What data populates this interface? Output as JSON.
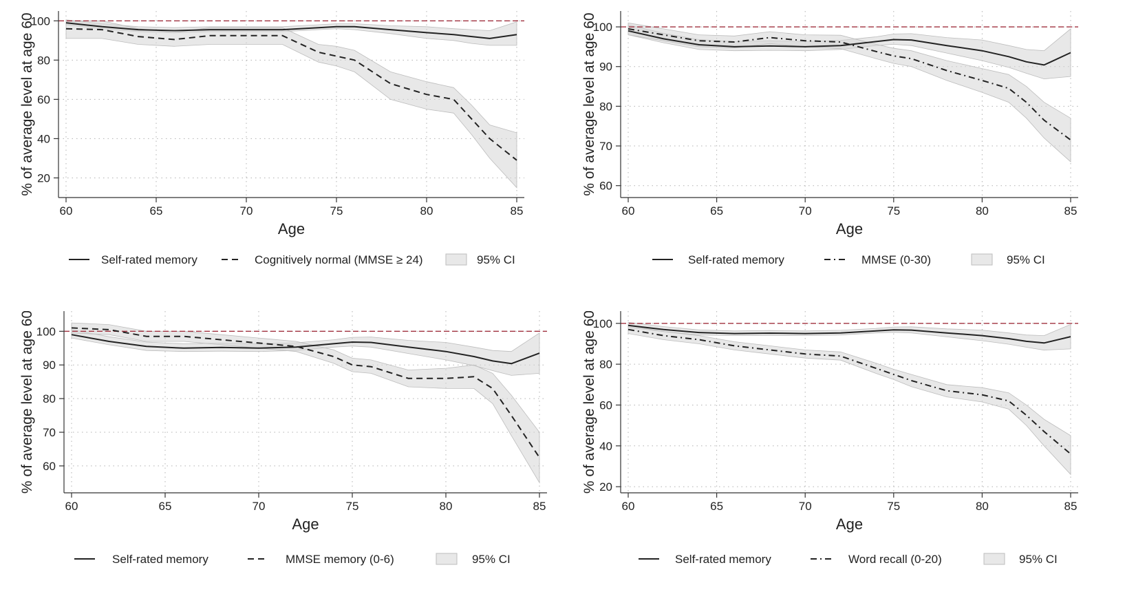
{
  "chart_data": [
    {
      "type": "line",
      "xlabel": "Age",
      "ylabel": "% of average level at age 60",
      "xlim": [
        60,
        85
      ],
      "xticks": [
        60,
        65,
        70,
        75,
        80,
        85
      ],
      "ylim": [
        10,
        105
      ],
      "yticks": [
        20,
        40,
        60,
        80,
        100
      ],
      "reference_line": 100,
      "grid": true,
      "legend_position": "bottom",
      "x": [
        60,
        62,
        64,
        66,
        68,
        70,
        72,
        74,
        75,
        76,
        78,
        80,
        81.5,
        82.5,
        83.5,
        85
      ],
      "series": [
        {
          "name": "Self-rated memory",
          "style": "solid",
          "values": [
            99,
            97,
            95.5,
            95,
            95.5,
            95.5,
            95.5,
            96.5,
            97,
            97,
            95.5,
            94,
            93,
            92,
            91,
            93
          ],
          "ci_lower": [
            98,
            96,
            94.5,
            94,
            94.5,
            94.5,
            94.5,
            95.5,
            96,
            95.5,
            93.5,
            91,
            90,
            88.5,
            87.5,
            87.5
          ],
          "ci_upper": [
            100.5,
            98.5,
            97,
            96.5,
            97,
            97,
            97,
            98,
            98.5,
            98.5,
            97.5,
            97,
            96,
            95.5,
            95,
            99.5
          ]
        },
        {
          "name": "Cognitively normal (MMSE ≥ 24)",
          "style": "dashed",
          "values": [
            96,
            95.5,
            92,
            90.5,
            92.5,
            92.5,
            92.5,
            84,
            82,
            80,
            68,
            62.5,
            60,
            50,
            40,
            29
          ],
          "ci_lower": [
            91,
            91,
            88,
            87,
            88,
            88,
            88,
            79,
            77,
            74,
            60,
            55,
            53,
            42,
            30,
            15
          ],
          "ci_upper": [
            100,
            100,
            96,
            94,
            96.5,
            96.5,
            96.5,
            88,
            87,
            85,
            74,
            69,
            66,
            57,
            47,
            43
          ]
        }
      ],
      "legend": [
        "Self-rated memory",
        "Cognitively normal (MMSE ≥ 24)",
        "95% CI"
      ]
    },
    {
      "type": "line",
      "xlabel": "Age",
      "ylabel": "% of average level at age 60",
      "xlim": [
        60,
        85
      ],
      "xticks": [
        60,
        65,
        70,
        75,
        80,
        85
      ],
      "ylim": [
        57,
        104
      ],
      "yticks": [
        60,
        70,
        80,
        90,
        100
      ],
      "reference_line": 100,
      "grid": true,
      "legend_position": "bottom",
      "x": [
        60,
        62,
        64,
        66,
        68,
        70,
        72,
        74,
        75,
        76,
        78,
        80,
        81.5,
        82.5,
        83.5,
        85
      ],
      "series": [
        {
          "name": "Self-rated memory",
          "style": "solid",
          "values": [
            99,
            97,
            95.5,
            95,
            95.2,
            95,
            95.3,
            96.3,
            96.8,
            96.7,
            95.3,
            94,
            92.5,
            91.2,
            90.4,
            93.5
          ],
          "ci_lower": [
            98,
            96,
            94.3,
            94,
            94.1,
            94,
            94.3,
            95.3,
            95.6,
            95.3,
            93.4,
            91.5,
            89.8,
            88.3,
            86.9,
            87.5
          ],
          "ci_upper": [
            100.5,
            98.4,
            96.8,
            96.3,
            96.5,
            96.3,
            96.6,
            97.5,
            98.2,
            98.3,
            97.3,
            96.7,
            95.3,
            94.3,
            94,
            99.5
          ]
        },
        {
          "name": "MMSE (0-30)",
          "style": "dash-dot",
          "values": [
            99.5,
            98,
            96.5,
            96.2,
            97.3,
            96.5,
            96.2,
            93.8,
            92.7,
            92,
            89,
            86.5,
            84.5,
            81,
            76.5,
            71.5
          ],
          "ci_lower": [
            98,
            96.5,
            95,
            94.7,
            95.8,
            95,
            94.5,
            92,
            90.8,
            90,
            86.5,
            83.5,
            81,
            77,
            72,
            66
          ],
          "ci_upper": [
            101,
            99.5,
            98,
            97.7,
            98.8,
            98,
            97.9,
            95.6,
            94.6,
            94,
            91.5,
            89.5,
            88,
            85,
            81,
            77
          ]
        }
      ],
      "legend": [
        "Self-rated memory",
        "MMSE (0-30)",
        "95% CI"
      ]
    },
    {
      "type": "line",
      "xlabel": "Age",
      "ylabel": "% of average level at age 60",
      "xlim": [
        60,
        85
      ],
      "xticks": [
        60,
        65,
        70,
        75,
        80,
        85
      ],
      "ylim": [
        52,
        106
      ],
      "yticks": [
        60,
        70,
        80,
        90,
        100
      ],
      "reference_line": 100,
      "grid": true,
      "legend_position": "bottom",
      "x": [
        60,
        62,
        64,
        66,
        68,
        70,
        72,
        74,
        75,
        76,
        78,
        80,
        81.5,
        82.5,
        83.5,
        85
      ],
      "series": [
        {
          "name": "Self-rated memory",
          "style": "solid",
          "values": [
            99,
            97,
            95.5,
            95,
            95.2,
            95,
            95.3,
            96.3,
            96.8,
            96.7,
            95.3,
            94,
            92.5,
            91.2,
            90.4,
            93.5
          ],
          "ci_lower": [
            98,
            96,
            94.3,
            94,
            94.1,
            94,
            94.3,
            95.3,
            95.6,
            95.3,
            93.4,
            91.5,
            89.8,
            88.3,
            86.9,
            87.5
          ],
          "ci_upper": [
            100.5,
            98.4,
            96.8,
            96.3,
            96.5,
            96.3,
            96.6,
            97.5,
            98.2,
            98.3,
            97.3,
            96.7,
            95.3,
            94.3,
            94,
            99.5
          ]
        },
        {
          "name": "MMSE memory (0-6)",
          "style": "dashed",
          "values": [
            101,
            100.5,
            98.5,
            98.5,
            97.5,
            96.5,
            95.5,
            92.5,
            90,
            89.5,
            86,
            86,
            86.5,
            83,
            75,
            62.5
          ],
          "ci_lower": [
            99.5,
            99,
            97,
            97,
            96,
            95,
            94,
            90.5,
            88,
            87.5,
            83.5,
            83,
            83,
            78.5,
            69,
            55
          ],
          "ci_upper": [
            102.5,
            102,
            100,
            100,
            99,
            98,
            97,
            94.5,
            92,
            91.5,
            88.5,
            89,
            90,
            87.5,
            81,
            70
          ]
        }
      ],
      "legend": [
        "Self-rated memory",
        "MMSE memory (0-6)",
        "95% CI"
      ]
    },
    {
      "type": "line",
      "xlabel": "Age",
      "ylabel": "% of average level at age 60",
      "xlim": [
        60,
        85
      ],
      "xticks": [
        60,
        65,
        70,
        75,
        80,
        85
      ],
      "ylim": [
        17,
        106
      ],
      "yticks": [
        20,
        40,
        60,
        80,
        100
      ],
      "reference_line": 100,
      "grid": true,
      "legend_position": "bottom",
      "x": [
        60,
        62,
        64,
        66,
        68,
        70,
        72,
        74,
        75,
        76,
        78,
        80,
        81.5,
        82.5,
        83.5,
        85
      ],
      "series": [
        {
          "name": "Self-rated memory",
          "style": "solid",
          "values": [
            99,
            97,
            95.5,
            95,
            95.2,
            95,
            95.3,
            96.3,
            96.8,
            96.7,
            95.3,
            94,
            92.5,
            91.2,
            90.4,
            93.5
          ],
          "ci_lower": [
            98,
            96,
            94.3,
            94,
            94.1,
            94,
            94.3,
            95.3,
            95.6,
            95.3,
            93.4,
            91.5,
            89.8,
            88.3,
            86.9,
            87.5
          ],
          "ci_upper": [
            100.5,
            98.4,
            96.8,
            96.3,
            96.5,
            96.3,
            96.6,
            97.5,
            98.2,
            98.3,
            97.3,
            96.7,
            95.3,
            94.3,
            94,
            99.5
          ]
        },
        {
          "name": "Word recall (0-20)",
          "style": "dash-dot",
          "values": [
            97,
            94,
            92,
            89,
            87,
            85,
            84,
            78,
            75,
            72,
            67,
            65,
            62,
            55,
            47,
            36
          ],
          "ci_lower": [
            95,
            92,
            90,
            87,
            85,
            83,
            82,
            75.5,
            72.5,
            69,
            64,
            61.5,
            58,
            50,
            40,
            26
          ],
          "ci_upper": [
            99,
            96,
            94,
            91,
            89,
            87,
            86,
            80.5,
            77.5,
            75,
            70,
            68.5,
            66,
            60,
            53,
            45
          ]
        }
      ],
      "legend": [
        "Self-rated memory",
        "Word recall (0-20)",
        "95% CI"
      ]
    }
  ]
}
